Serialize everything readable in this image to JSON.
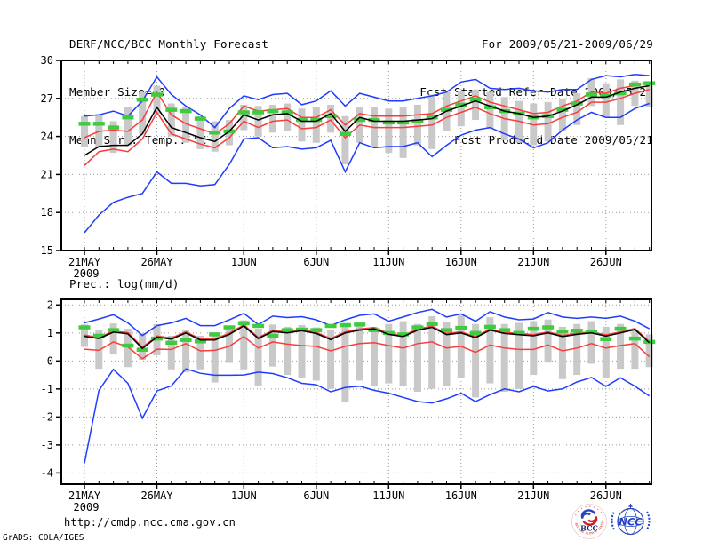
{
  "header": {
    "title": "DERF/NCC/BCC Monthly Forecast",
    "member_size": "Member Size=40",
    "top_var_label": "Mean Surf. Temp.: °C",
    "for_range": "For 2009/05/21-2009/06/29",
    "refer_date": "Fcst Started Refer Date 2009/05/20",
    "produced_date": "Fcst Produced Date 2009/05/21"
  },
  "footer": {
    "url": "http://cmdp.ncc.cma.gov.cn",
    "grads_credit": "GrADS: COLA/IGES",
    "bcc_label": "BCC",
    "bcc_ring_text": "BEIJING CLIMATE CENTER",
    "ncc_label": "NCC"
  },
  "colors": {
    "blue": "#1e3cff",
    "red": "#fa3c3c",
    "green": "#3ecc3e",
    "bar_gray": "#c9c9c9",
    "grid_gray": "#9a9a9a",
    "black": "#000000",
    "bcc_navy": "#1a2a7a",
    "bcc_red": "#cc2222",
    "ncc_blue": "#2343c3"
  },
  "chart_data": [
    {
      "type": "line",
      "title": "Mean Surf. Temp.: °C",
      "ylabel": "°C",
      "ylim": [
        15,
        30
      ],
      "yticks": [
        30,
        27,
        24,
        21,
        18,
        15
      ],
      "grid": true,
      "legend": "none",
      "year_label": "2009",
      "x_tick_labels": [
        "21MAY",
        "26MAY",
        "1JUN",
        "6JUN",
        "11JUN",
        "16JUN",
        "21JUN",
        "26JUN"
      ],
      "x_tick_days": [
        0,
        5,
        11,
        16,
        21,
        26,
        31,
        36
      ],
      "dates": [
        "5/21",
        "5/22",
        "5/23",
        "5/24",
        "5/25",
        "5/26",
        "5/27",
        "5/28",
        "5/29",
        "5/30",
        "5/31",
        "6/1",
        "6/2",
        "6/3",
        "6/4",
        "6/5",
        "6/6",
        "6/7",
        "6/8",
        "6/9",
        "6/10",
        "6/11",
        "6/12",
        "6/13",
        "6/14",
        "6/15",
        "6/16",
        "6/17",
        "6/18",
        "6/19",
        "6/20",
        "6/21",
        "6/22",
        "6/23",
        "6/24",
        "6/25",
        "6/26",
        "6/27",
        "6/28",
        "6/29"
      ],
      "series": [
        {
          "name": "envelope-max-blue",
          "color": "#1e3cff",
          "values": [
            25.6,
            25.7,
            26.0,
            25.6,
            26.8,
            28.7,
            27.3,
            26.4,
            25.7,
            24.7,
            26.2,
            27.2,
            26.9,
            27.3,
            27.4,
            26.5,
            26.8,
            27.6,
            26.4,
            27.4,
            27.1,
            26.8,
            26.8,
            27.0,
            27.2,
            27.5,
            28.3,
            28.5,
            27.8,
            27.7,
            27.8,
            27.6,
            27.5,
            27.7,
            27.7,
            28.5,
            28.8,
            28.7,
            28.9,
            28.8
          ]
        },
        {
          "name": "upper-red",
          "color": "#fa3c3c",
          "values": [
            23.9,
            24.4,
            24.5,
            24.4,
            25.3,
            27.5,
            25.7,
            25.0,
            24.6,
            24.2,
            25.0,
            26.4,
            26.0,
            26.1,
            26.2,
            25.5,
            25.5,
            26.1,
            24.9,
            25.8,
            25.6,
            25.6,
            25.6,
            25.7,
            25.8,
            26.4,
            26.8,
            27.2,
            26.7,
            26.4,
            26.1,
            25.8,
            25.9,
            26.4,
            26.8,
            27.5,
            27.4,
            27.8,
            28.0,
            28.3
          ]
        },
        {
          "name": "lower-red",
          "color": "#fa3c3c",
          "values": [
            21.7,
            22.8,
            23.0,
            22.8,
            23.8,
            25.9,
            24.2,
            23.8,
            23.4,
            23.1,
            23.9,
            25.2,
            24.7,
            25.2,
            25.3,
            24.6,
            24.7,
            25.3,
            23.9,
            24.9,
            24.7,
            24.7,
            24.7,
            24.8,
            24.9,
            25.5,
            25.9,
            26.3,
            25.8,
            25.4,
            25.2,
            24.9,
            25.0,
            25.5,
            25.9,
            26.7,
            26.7,
            27.0,
            27.4,
            27.7
          ]
        },
        {
          "name": "envelope-min-blue",
          "color": "#1e3cff",
          "values": [
            16.4,
            17.8,
            18.8,
            19.2,
            19.5,
            21.2,
            20.3,
            20.3,
            20.1,
            20.2,
            21.8,
            23.8,
            23.9,
            23.1,
            23.2,
            23.0,
            23.1,
            23.7,
            21.2,
            23.5,
            23.1,
            23.2,
            23.2,
            23.5,
            22.4,
            23.3,
            24.1,
            24.5,
            24.7,
            24.2,
            23.8,
            23.1,
            23.5,
            24.5,
            25.3,
            25.9,
            25.5,
            25.5,
            26.2,
            26.6
          ]
        },
        {
          "name": "green-dash-obs",
          "color": "#3ecc3e",
          "style": "thick-dash",
          "values": [
            25.0,
            25.0,
            24.7,
            25.5,
            26.9,
            27.3,
            26.1,
            26.0,
            25.4,
            24.3,
            24.4,
            25.9,
            25.9,
            26.0,
            25.9,
            25.3,
            25.3,
            25.6,
            24.2,
            25.3,
            25.3,
            25.1,
            25.1,
            25.2,
            25.5,
            26.1,
            26.5,
            26.9,
            26.3,
            26.0,
            25.8,
            25.5,
            25.6,
            26.1,
            26.6,
            27.3,
            27.2,
            27.4,
            28.1,
            28.2
          ]
        },
        {
          "name": "ensemble-mean-black",
          "color": "#000000",
          "values": [
            22.5,
            23.2,
            23.3,
            23.3,
            24.2,
            26.3,
            24.7,
            24.3,
            23.9,
            23.6,
            24.4,
            25.7,
            25.3,
            25.7,
            25.8,
            25.2,
            25.2,
            25.8,
            24.4,
            25.5,
            25.2,
            25.2,
            25.2,
            25.3,
            25.4,
            26.0,
            26.4,
            26.8,
            26.4,
            26.0,
            25.8,
            25.5,
            25.6,
            26.0,
            26.5,
            27.1,
            27.1,
            27.5,
            27.8,
            28.0
          ]
        }
      ],
      "bars": {
        "name": "spread-bar-gray",
        "color": "#c9c9c9",
        "hi": [
          25.6,
          25.7,
          25.2,
          26.3,
          27.5,
          28.0,
          26.6,
          26.3,
          25.6,
          25.2,
          25.3,
          26.5,
          26.4,
          26.5,
          26.6,
          26.2,
          26.3,
          26.5,
          25.6,
          26.3,
          26.3,
          26.2,
          26.3,
          26.5,
          27.3,
          27.5,
          27.6,
          27.7,
          27.5,
          27.1,
          26.8,
          26.6,
          26.7,
          27.0,
          27.4,
          28.6,
          28.2,
          28.5,
          28.4,
          28.3
        ],
        "lo": [
          23.2,
          23.2,
          22.7,
          23.3,
          24.2,
          25.8,
          24.0,
          23.5,
          23.0,
          22.8,
          23.3,
          24.5,
          24.0,
          24.3,
          24.4,
          23.6,
          23.5,
          24.3,
          21.8,
          23.5,
          23.2,
          22.7,
          22.3,
          23.3,
          23.0,
          24.4,
          24.8,
          25.3,
          24.6,
          23.7,
          23.5,
          23.3,
          23.6,
          24.4,
          24.9,
          26.4,
          25.5,
          24.9,
          26.4,
          26.3
        ]
      }
    },
    {
      "type": "line",
      "title": "Prec.: log(mm/d)",
      "ylabel": "log(mm/d)",
      "ylim": [
        -4.4,
        2.2
      ],
      "yticks": [
        2,
        1,
        0,
        -1,
        -2,
        -3,
        -4
      ],
      "grid": true,
      "legend": "none",
      "year_label": "2009",
      "x_tick_labels": [
        "21MAY",
        "26MAY",
        "1JUN",
        "6JUN",
        "11JUN",
        "16JUN",
        "21JUN",
        "26JUN"
      ],
      "x_tick_days": [
        0,
        5,
        11,
        16,
        21,
        26,
        31,
        36
      ],
      "dates": [
        "5/21",
        "5/22",
        "5/23",
        "5/24",
        "5/25",
        "5/26",
        "5/27",
        "5/28",
        "5/29",
        "5/30",
        "5/31",
        "6/1",
        "6/2",
        "6/3",
        "6/4",
        "6/5",
        "6/6",
        "6/7",
        "6/8",
        "6/9",
        "6/10",
        "6/11",
        "6/12",
        "6/13",
        "6/14",
        "6/15",
        "6/16",
        "6/17",
        "6/18",
        "6/19",
        "6/20",
        "6/21",
        "6/22",
        "6/23",
        "6/24",
        "6/25",
        "6/26",
        "6/27",
        "6/28",
        "6/29"
      ],
      "series": [
        {
          "name": "envelope-max-blue",
          "color": "#1e3cff",
          "values": [
            1.36,
            1.5,
            1.65,
            1.36,
            0.91,
            1.26,
            1.36,
            1.52,
            1.26,
            1.26,
            1.47,
            1.7,
            1.3,
            1.6,
            1.55,
            1.58,
            1.47,
            1.26,
            1.47,
            1.63,
            1.68,
            1.42,
            1.57,
            1.73,
            1.84,
            1.57,
            1.68,
            1.42,
            1.76,
            1.57,
            1.47,
            1.5,
            1.73,
            1.57,
            1.52,
            1.57,
            1.52,
            1.6,
            1.42,
            1.15
          ]
        },
        {
          "name": "upper-red",
          "color": "#fa3c3c",
          "values": [
            0.92,
            0.84,
            1.07,
            1.01,
            0.49,
            0.89,
            0.82,
            1.04,
            0.79,
            0.79,
            0.99,
            1.29,
            0.84,
            1.09,
            1.04,
            1.12,
            1.02,
            0.8,
            1.04,
            1.14,
            1.19,
            0.99,
            0.91,
            1.14,
            1.24,
            0.98,
            1.04,
            0.87,
            1.14,
            1.02,
            0.98,
            0.94,
            1.04,
            0.91,
            0.99,
            1.04,
            0.93,
            1.04,
            1.16,
            0.69
          ]
        },
        {
          "name": "lower-red",
          "color": "#fa3c3c",
          "values": [
            0.42,
            0.38,
            0.68,
            0.5,
            0.08,
            0.42,
            0.41,
            0.62,
            0.36,
            0.38,
            0.52,
            0.87,
            0.46,
            0.68,
            0.6,
            0.55,
            0.52,
            0.36,
            0.52,
            0.62,
            0.65,
            0.55,
            0.46,
            0.62,
            0.68,
            0.46,
            0.52,
            0.31,
            0.57,
            0.46,
            0.41,
            0.41,
            0.57,
            0.36,
            0.46,
            0.62,
            0.46,
            0.55,
            0.62,
            0.15
          ]
        },
        {
          "name": "envelope-min-blue",
          "color": "#1e3cff",
          "values": [
            -3.65,
            -1.05,
            -0.3,
            -0.8,
            -2.05,
            -1.07,
            -0.89,
            -0.28,
            -0.44,
            -0.51,
            -0.51,
            -0.5,
            -0.4,
            -0.45,
            -0.6,
            -0.8,
            -0.85,
            -1.1,
            -0.95,
            -0.9,
            -1.05,
            -1.15,
            -1.3,
            -1.45,
            -1.5,
            -1.35,
            -1.15,
            -1.45,
            -1.2,
            -1.0,
            -1.1,
            -0.91,
            -1.07,
            -1.0,
            -0.75,
            -0.59,
            -0.91,
            -0.6,
            -0.9,
            -1.25
          ]
        },
        {
          "name": "green-dash-obs",
          "color": "#3ecc3e",
          "style": "thick-dash",
          "values": [
            1.2,
            0.9,
            1.1,
            0.55,
            0.4,
            0.8,
            0.65,
            0.75,
            0.7,
            0.95,
            1.2,
            1.35,
            1.25,
            0.9,
            1.1,
            1.12,
            1.1,
            1.25,
            1.28,
            1.3,
            1.1,
            1.0,
            0.95,
            1.2,
            1.32,
            1.1,
            1.18,
            1.0,
            1.22,
            1.1,
            1.0,
            1.15,
            1.2,
            1.05,
            1.08,
            1.05,
            0.78,
            1.15,
            0.8,
            0.68
          ]
        },
        {
          "name": "ensemble-mean-black",
          "color": "#000000",
          "values": [
            0.88,
            0.8,
            1.03,
            0.97,
            0.45,
            0.85,
            0.78,
            1.0,
            0.75,
            0.75,
            0.95,
            1.25,
            0.8,
            1.05,
            1.0,
            1.08,
            0.98,
            0.76,
            1.0,
            1.1,
            1.15,
            0.95,
            0.87,
            1.1,
            1.2,
            0.94,
            1.0,
            0.83,
            1.1,
            0.98,
            0.94,
            0.9,
            1.0,
            0.87,
            0.95,
            1.0,
            0.89,
            1.0,
            1.12,
            0.65
          ]
        }
      ],
      "bars": {
        "name": "spread-bar-gray",
        "color": "#c9c9c9",
        "hi": [
          1.3,
          1.1,
          1.34,
          1.15,
          1.0,
          1.31,
          0.9,
          1.1,
          0.9,
          1.0,
          1.25,
          1.45,
          1.15,
          1.3,
          1.22,
          1.28,
          1.2,
          1.1,
          1.22,
          1.3,
          1.22,
          1.32,
          1.42,
          1.32,
          1.6,
          1.38,
          1.62,
          1.32,
          1.56,
          1.32,
          1.36,
          1.42,
          1.48,
          1.22,
          1.32,
          1.42,
          1.22,
          1.32,
          1.12,
          0.95
        ],
        "lo": [
          0.5,
          -0.28,
          0.23,
          -0.22,
          0.04,
          0.2,
          -0.3,
          -0.4,
          -0.3,
          -0.77,
          -0.07,
          -0.3,
          -0.9,
          -0.2,
          -0.5,
          -0.6,
          -0.7,
          -1.0,
          -1.45,
          -0.7,
          -0.9,
          -0.8,
          -0.9,
          -1.1,
          -1.0,
          -0.9,
          -0.6,
          -1.3,
          -0.8,
          -1.1,
          -1.0,
          -0.5,
          -0.06,
          -0.65,
          -0.5,
          -0.1,
          -0.59,
          -0.28,
          -0.28,
          -0.22
        ]
      }
    }
  ]
}
